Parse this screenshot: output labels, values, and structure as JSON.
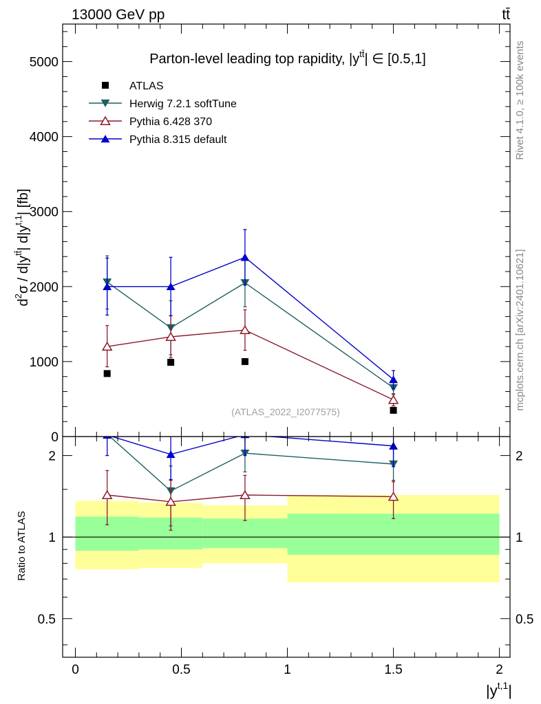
{
  "header": {
    "energy_label": "13000 GeV pp",
    "process_label": "tt̄"
  },
  "side_labels": {
    "rivet": "Rivet 4.1.0, ≥ 100k events",
    "mcplots": "mcplots.cern.ch [arXiv:2401.10621]"
  },
  "chart_data": [
    {
      "panel": "main",
      "type": "line",
      "title": "Parton-level leading top rapidity, |y^{tt̄}| ∈ [0.5,1]",
      "title_parts": {
        "prefix": "Parton-level leading top rapidity, |y",
        "sup": "tt̄",
        "suffix": "| ∈ [0.5,1]"
      },
      "ylabel": "d²σ / d|y^{tt̄}| d|y^{t,1}| [fb]",
      "ylabel_parts": {
        "p1": "d",
        "s1": "2",
        "p2": "σ / d|y",
        "s2": "tt̄",
        "p3": "| d|y",
        "s3": "t,1",
        "p4": "| [fb]"
      },
      "xlim": [
        -0.06,
        2.05
      ],
      "ylim": [
        0,
        5500
      ],
      "y_ticks": [
        0,
        1000,
        2000,
        3000,
        4000,
        5000
      ],
      "y_tick_labels": [
        "0",
        "1000",
        "2000",
        "3000",
        "4000",
        "5000"
      ],
      "annotation": "(ATLAS_2022_I2077575)",
      "legend_position": "top-left",
      "series": [
        {
          "name": "ATLAS",
          "color": "#000000",
          "marker": "square",
          "x": [
            0.15,
            0.45,
            0.8,
            1.5
          ],
          "y": [
            840,
            990,
            1000,
            350
          ]
        },
        {
          "name": "Herwig 7.2.1 softTune",
          "color": "#1f5f5f",
          "marker": "triangle-down",
          "x": [
            0.15,
            0.45,
            0.8,
            1.5
          ],
          "y": [
            2060,
            1450,
            2050,
            650
          ],
          "yerr": [
            [
              1700,
              2410
            ],
            [
              1090,
              1810
            ],
            [
              1730,
              2370
            ],
            [
              560,
              740
            ]
          ]
        },
        {
          "name": "Pythia 6.428 370",
          "color": "#8b1a2b",
          "marker": "triangle-up-open",
          "x": [
            0.15,
            0.45,
            0.8,
            1.5
          ],
          "y": [
            1200,
            1330,
            1420,
            490
          ],
          "yerr": [
            [
              930,
              1480
            ],
            [
              1050,
              1610
            ],
            [
              1150,
              1690
            ],
            [
              410,
              570
            ]
          ]
        },
        {
          "name": "Pythia 8.315 default",
          "color": "#0000cc",
          "marker": "triangle-up",
          "x": [
            0.15,
            0.45,
            0.8,
            1.5
          ],
          "y": [
            2000,
            2000,
            2390,
            760
          ],
          "yerr": [
            [
              1620,
              2380
            ],
            [
              1610,
              2390
            ],
            [
              2020,
              2760
            ],
            [
              640,
              880
            ]
          ]
        }
      ]
    },
    {
      "panel": "ratio",
      "type": "line",
      "ylabel": "Ratio to ATLAS",
      "xlabel": "|y^{t,1}|",
      "xlabel_parts": {
        "prefix": "|y",
        "sup": "t,1",
        "suffix": "|"
      },
      "xlim": [
        -0.06,
        2.05
      ],
      "ylim": [
        0.36,
        2.35
      ],
      "y_log": true,
      "y_ticks": [
        0.5,
        1,
        2
      ],
      "y_tick_labels": [
        "0.5",
        "1",
        "2"
      ],
      "x_ticks": [
        0,
        0.5,
        1,
        1.5,
        2
      ],
      "x_tick_labels": [
        "0",
        "0.5",
        "1",
        "1.5",
        "2"
      ],
      "reference_line": 1,
      "bands": [
        {
          "x0": 0.0,
          "x1": 0.3,
          "inner": [
            0.89,
            1.19
          ],
          "outer": [
            0.76,
            1.36
          ]
        },
        {
          "x0": 0.3,
          "x1": 0.6,
          "inner": [
            0.9,
            1.18
          ],
          "outer": [
            0.77,
            1.34
          ]
        },
        {
          "x0": 0.6,
          "x1": 1.0,
          "inner": [
            0.91,
            1.17
          ],
          "outer": [
            0.8,
            1.31
          ]
        },
        {
          "x0": 1.0,
          "x1": 2.0,
          "inner": [
            0.86,
            1.22
          ],
          "outer": [
            0.68,
            1.43
          ]
        }
      ],
      "band_colors": {
        "inner": "#99ff99",
        "outer": "#ffff99"
      },
      "series": [
        {
          "name": "Herwig 7.2.1 softTune",
          "color": "#1f5f5f",
          "marker": "triangle-down",
          "x": [
            0.15,
            0.45,
            0.8,
            1.5
          ],
          "y": [
            2.4,
            1.48,
            2.04,
            1.86
          ],
          "yerr": [
            null,
            [
              1.1,
              1.83
            ],
            [
              1.74,
              2.37
            ],
            [
              1.6,
              2.11
            ]
          ]
        },
        {
          "name": "Pythia 6.428 370",
          "color": "#8b1a2b",
          "marker": "triangle-up-open",
          "x": [
            0.15,
            0.45,
            0.8,
            1.5
          ],
          "y": [
            1.43,
            1.35,
            1.43,
            1.41
          ],
          "yerr": [
            [
              1.11,
              1.76
            ],
            [
              1.06,
              1.62
            ],
            [
              1.15,
              1.69
            ],
            [
              1.17,
              1.62
            ]
          ]
        },
        {
          "name": "Pythia 8.315 default",
          "color": "#0000cc",
          "marker": "triangle-up",
          "x": [
            0.15,
            0.45,
            0.8,
            1.5
          ],
          "y": [
            2.38,
            2.02,
            2.39,
            2.17
          ],
          "yerr": [
            [
              2.0,
              2.75
            ],
            [
              1.63,
              2.4
            ],
            [
              2.0,
              2.75
            ],
            [
              1.82,
              2.51
            ]
          ]
        }
      ]
    }
  ]
}
